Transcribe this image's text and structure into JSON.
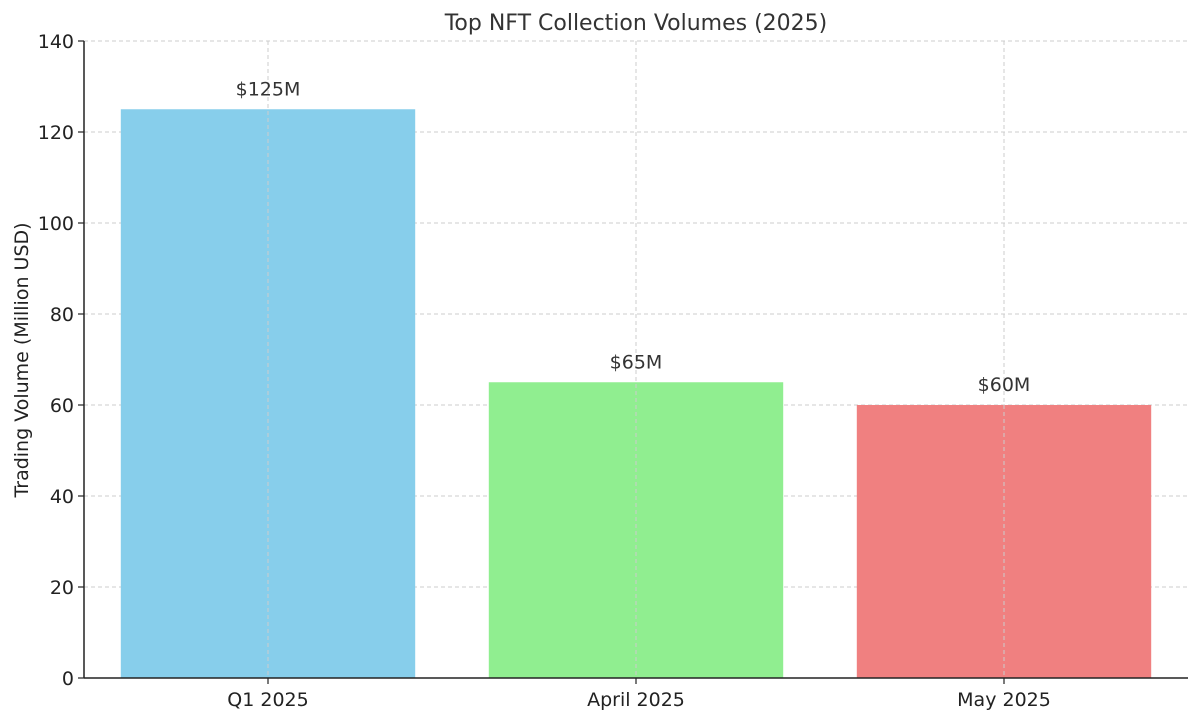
{
  "chart_data": {
    "type": "bar",
    "title": "Top NFT Collection Volumes (2025)",
    "xlabel": "",
    "ylabel": "Trading Volume (Million USD)",
    "categories": [
      "Q1 2025",
      "April 2025",
      "May 2025"
    ],
    "values": [
      125,
      65,
      60
    ],
    "data_labels": [
      "$125M",
      "$65M",
      "$60M"
    ],
    "colors": [
      "#87CEEB",
      "#90EE90",
      "#F08080"
    ],
    "ylim": [
      0,
      140
    ],
    "yticks": [
      0,
      20,
      40,
      60,
      80,
      100,
      120,
      140
    ],
    "grid": true
  }
}
